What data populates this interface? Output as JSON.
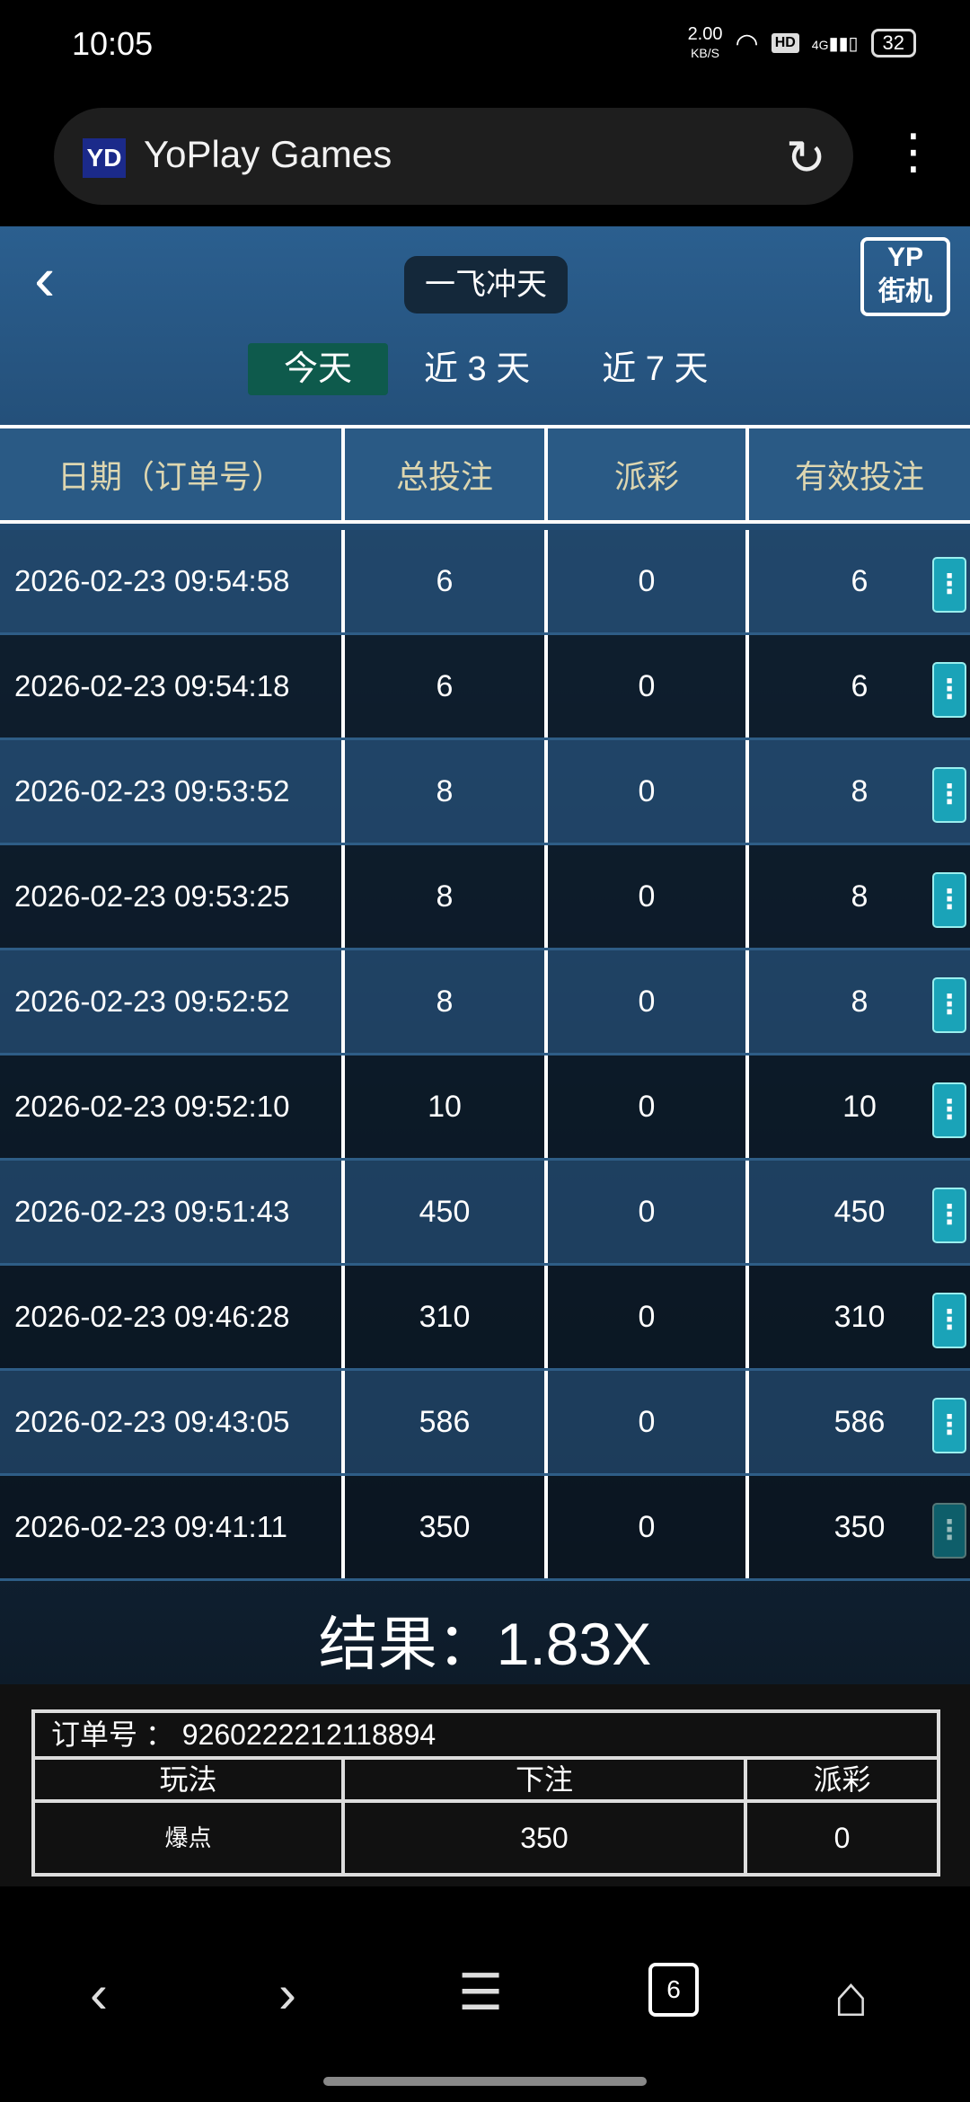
{
  "status_bar": {
    "time": "10:05",
    "net_speed": "2.00",
    "net_unit": "KB/S",
    "hd": "HD",
    "signal": "4G",
    "battery": "32"
  },
  "browser": {
    "favicon": "YD",
    "title": "YoPlay Games"
  },
  "header": {
    "game_title": "一飞冲天",
    "logo_top": "YP",
    "logo_bottom": "街机"
  },
  "tabs": [
    {
      "label": "今天",
      "active": true
    },
    {
      "label": "近 3 天",
      "active": false
    },
    {
      "label": "近 7 天",
      "active": false
    }
  ],
  "table": {
    "headers": [
      "日期（订单号）",
      "总投注",
      "派彩",
      "有效投注"
    ],
    "rows": [
      {
        "date": "2026-02-23 09:54:58",
        "bet": "6",
        "payout": "0",
        "valid": "6"
      },
      {
        "date": "2026-02-23 09:54:18",
        "bet": "6",
        "payout": "0",
        "valid": "6"
      },
      {
        "date": "2026-02-23 09:53:52",
        "bet": "8",
        "payout": "0",
        "valid": "8"
      },
      {
        "date": "2026-02-23 09:53:25",
        "bet": "8",
        "payout": "0",
        "valid": "8"
      },
      {
        "date": "2026-02-23 09:52:52",
        "bet": "8",
        "payout": "0",
        "valid": "8"
      },
      {
        "date": "2026-02-23 09:52:10",
        "bet": "10",
        "payout": "0",
        "valid": "10"
      },
      {
        "date": "2026-02-23 09:51:43",
        "bet": "450",
        "payout": "0",
        "valid": "450"
      },
      {
        "date": "2026-02-23 09:46:28",
        "bet": "310",
        "payout": "0",
        "valid": "310"
      },
      {
        "date": "2026-02-23 09:43:05",
        "bet": "586",
        "payout": "0",
        "valid": "586"
      },
      {
        "date": "2026-02-23 09:41:11",
        "bet": "350",
        "payout": "0",
        "valid": "350",
        "selected": true
      }
    ]
  },
  "result": "结果：1.83X",
  "order_detail": {
    "order_label": "订单号  ：  9260222212118894",
    "headers": [
      "玩法",
      "下注",
      "派彩"
    ],
    "values": [
      "爆点",
      "350",
      "0"
    ]
  },
  "bottom_nav": {
    "tab_count": "6"
  },
  "colors": {
    "accent_green": "#0e5a4c",
    "more_button": "#1aa3b8",
    "header_bg": "#2a5a85",
    "header_text": "#ddd6b0"
  }
}
